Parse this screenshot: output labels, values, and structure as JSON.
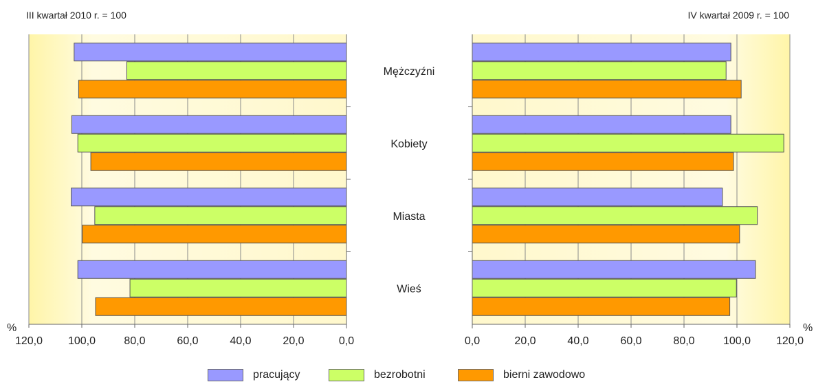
{
  "chart_data": [
    {
      "type": "bar",
      "orientation": "horizontal",
      "x_direction": "reversed",
      "title": "III kwartał 2010 r. = 100",
      "xlabel": "%",
      "xlim": [
        0,
        120
      ],
      "xticks": [
        "120,0",
        "100,0",
        "80,0",
        "60,0",
        "40,0",
        "20,0",
        "0,0"
      ],
      "grid": true,
      "categories": [
        "Mężczyźni",
        "Kobiety",
        "Miasta",
        "Wieś"
      ],
      "series": [
        {
          "name": "pracujący",
          "values": [
            102.9,
            103.8,
            104.0,
            101.5
          ]
        },
        {
          "name": "bezrobotni",
          "values": [
            83.0,
            101.5,
            95.1,
            81.8
          ]
        },
        {
          "name": "bierni zawodowo",
          "values": [
            101.2,
            96.6,
            99.8,
            94.8
          ]
        }
      ]
    },
    {
      "type": "bar",
      "orientation": "horizontal",
      "title": "IV kwartał 2009 r. = 100",
      "xlabel": "%",
      "xlim": [
        0,
        120
      ],
      "xticks": [
        "0,0",
        "20,0",
        "40,0",
        "60,0",
        "80,0",
        "100,0",
        "120,0"
      ],
      "grid": true,
      "categories": [
        "Mężczyźni",
        "Kobiety",
        "Miasta",
        "Wieś"
      ],
      "series": [
        {
          "name": "pracujący",
          "values": [
            97.7,
            97.7,
            94.5,
            107.0
          ]
        },
        {
          "name": "bezrobotni",
          "values": [
            95.9,
            117.7,
            107.7,
            99.8
          ]
        },
        {
          "name": "bierni zawodowo",
          "values": [
            101.6,
            98.7,
            101.0,
            97.3
          ]
        }
      ]
    }
  ],
  "legend": [
    {
      "label": "pracujący",
      "color": "#9999ff"
    },
    {
      "label": "bezrobotni",
      "color": "#ccff66"
    },
    {
      "label": "bierni zawodowo",
      "color": "#ff9900"
    }
  ],
  "colors": {
    "pracujący": "#9999ff",
    "bezrobotni": "#ccff66",
    "bierni zawodowo": "#ff9900",
    "bar_border": "#555555",
    "background_warm": "#fff7bf",
    "background_light": "#fffff0",
    "grid": "#8a8a8a"
  }
}
